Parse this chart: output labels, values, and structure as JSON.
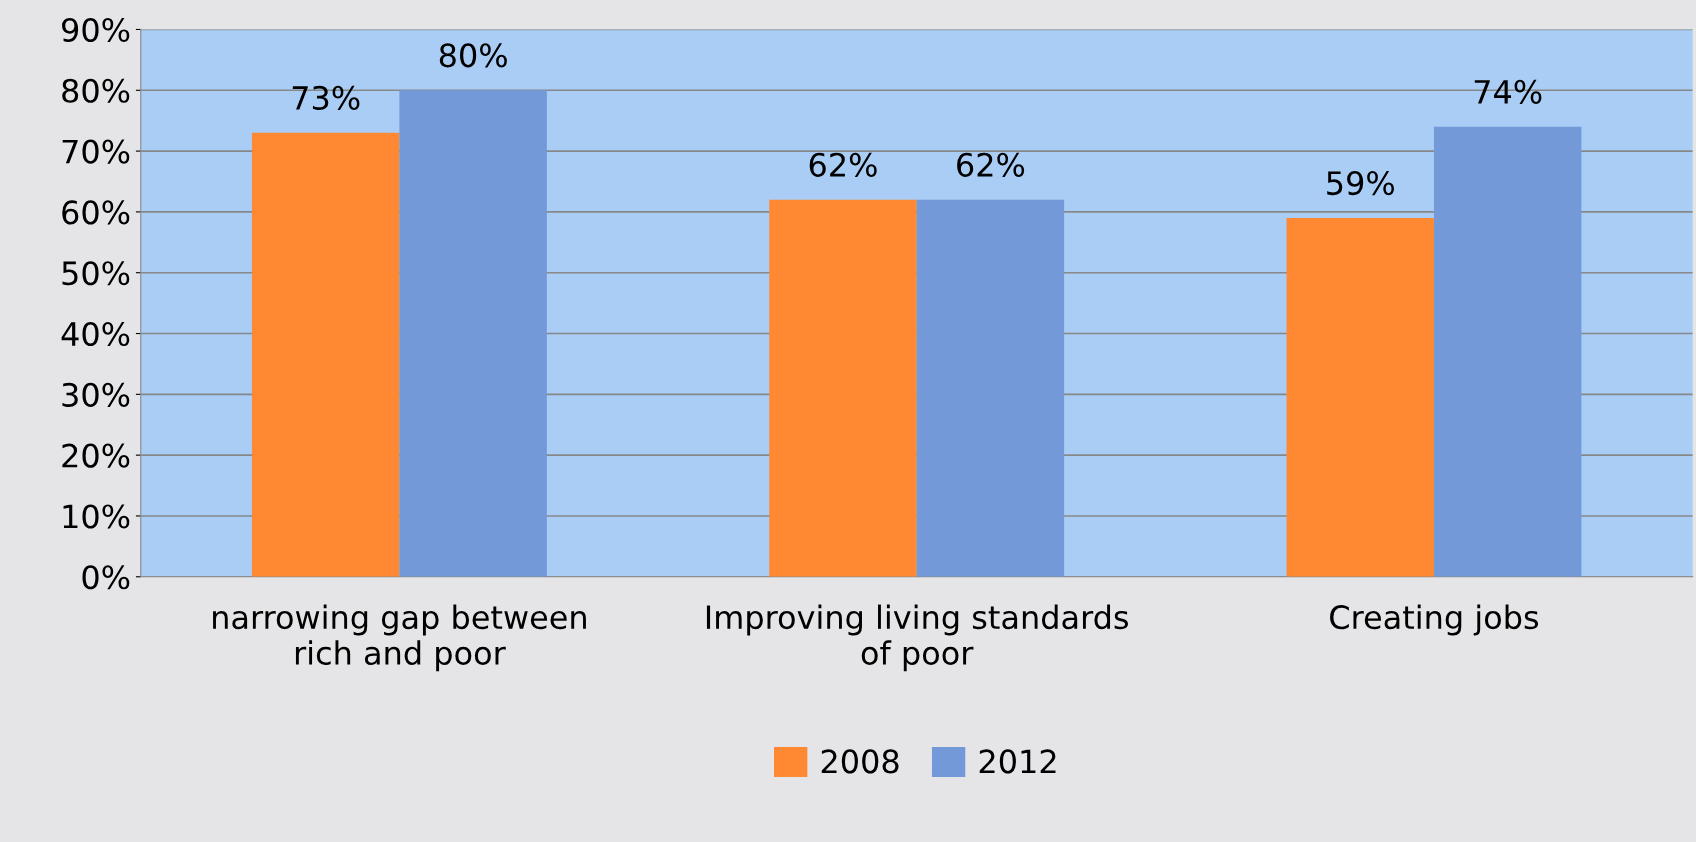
{
  "chart_data": {
    "type": "bar",
    "categories": [
      "narrowing gap between\nrich and poor",
      "Improving living standards\nof poor",
      "Creating jobs"
    ],
    "series": [
      {
        "name": "2008",
        "color": "#ff8833",
        "values": [
          73,
          62,
          59
        ],
        "value_labels": [
          "73%",
          "62%",
          "59%"
        ]
      },
      {
        "name": "2012",
        "color": "#7399d8",
        "values": [
          80,
          62,
          74
        ],
        "value_labels": [
          "80%",
          "62%",
          "74%"
        ]
      }
    ],
    "ylim": [
      0,
      90
    ],
    "yticks": [
      {
        "value": 0,
        "label": "0%"
      },
      {
        "value": 10,
        "label": "10%"
      },
      {
        "value": 20,
        "label": "20%"
      },
      {
        "value": 30,
        "label": "30%"
      },
      {
        "value": 40,
        "label": "40%"
      },
      {
        "value": 50,
        "label": "50%"
      },
      {
        "value": 60,
        "label": "60%"
      },
      {
        "value": 70,
        "label": "70%"
      },
      {
        "value": 80,
        "label": "80%"
      },
      {
        "value": 90,
        "label": "90%"
      }
    ],
    "grid": "y",
    "legend": "bottom"
  }
}
